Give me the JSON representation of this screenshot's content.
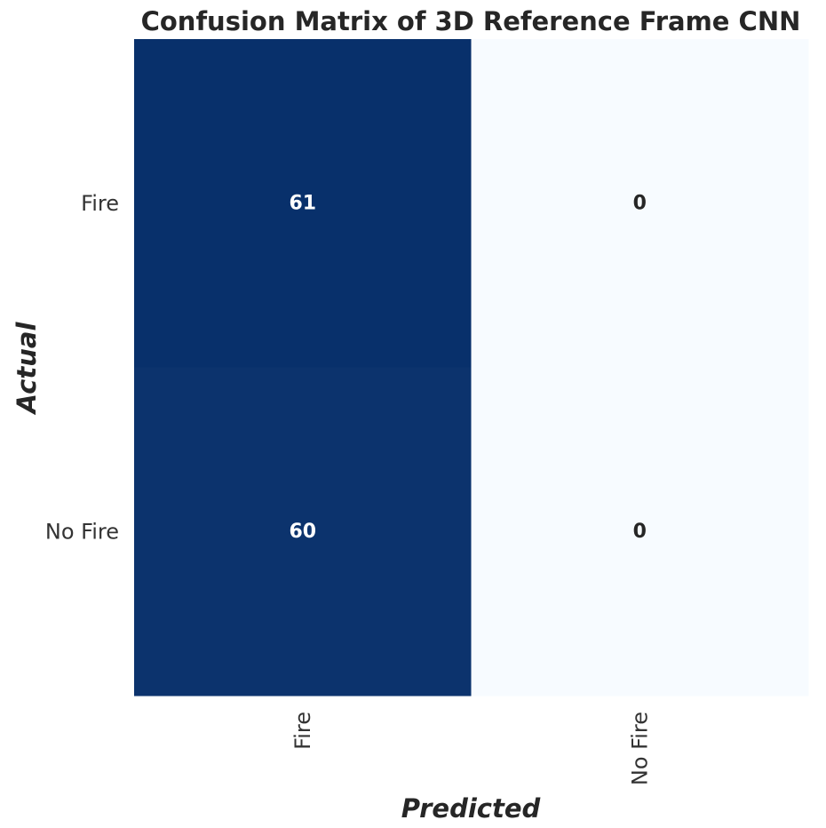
{
  "chart_data": {
    "type": "heatmap",
    "title": "Confusion Matrix of 3D Reference Frame CNN",
    "xlabel": "Predicted",
    "ylabel": "Actual",
    "x_categories": [
      "Fire",
      "No Fire"
    ],
    "y_categories": [
      "Fire",
      "No Fire"
    ],
    "values": [
      [
        61,
        0
      ],
      [
        60,
        0
      ]
    ],
    "colormap": "Blues",
    "color_low": "#f7fbff",
    "color_high": "#08306b",
    "text_color_on_dark": "#ffffff",
    "text_color_on_light": "#262626",
    "colorbar": false,
    "grid": false
  }
}
